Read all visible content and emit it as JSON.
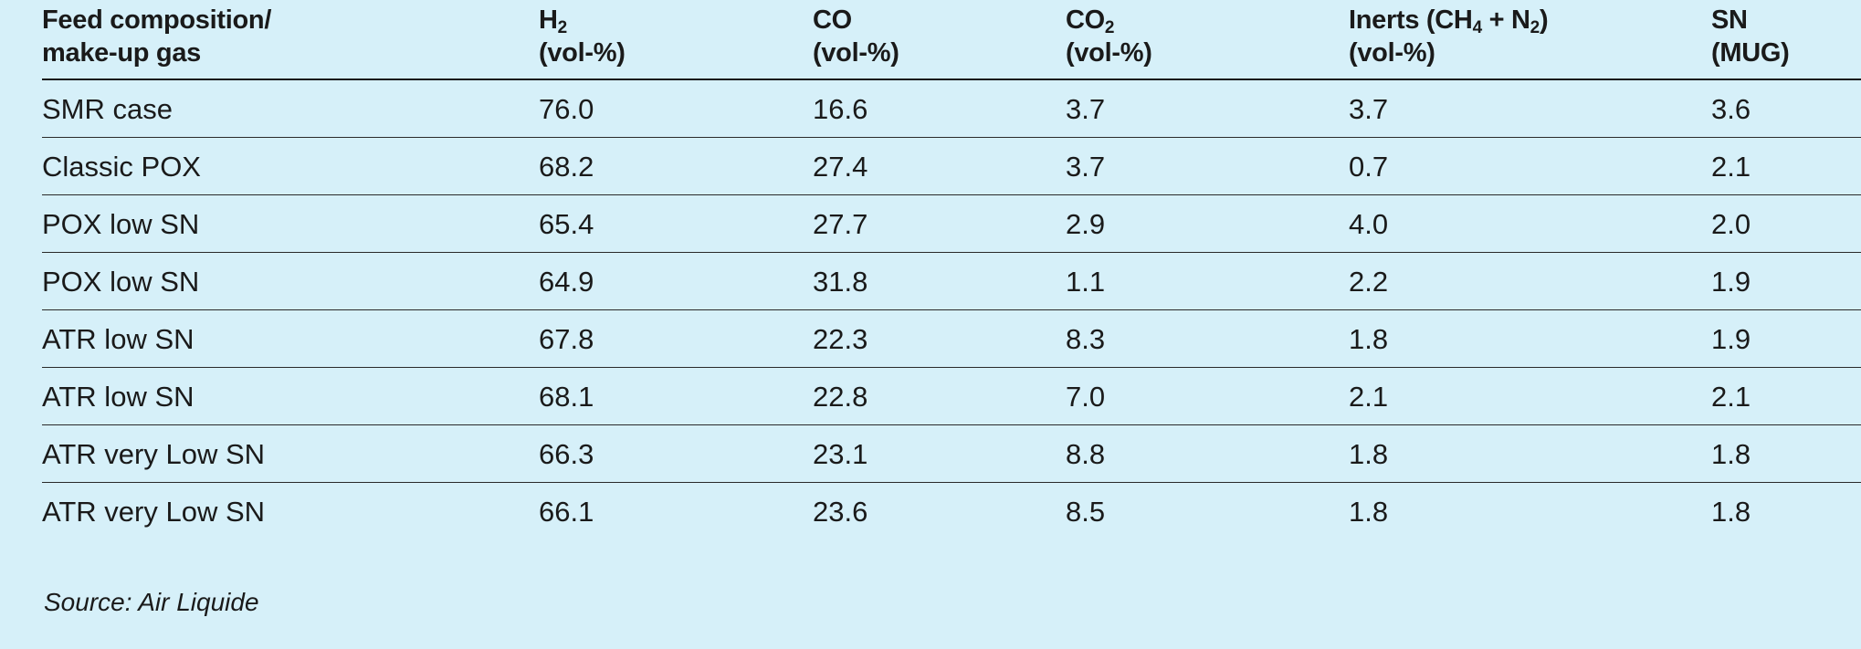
{
  "table": {
    "headers": [
      {
        "line1": "Feed composition/",
        "sub": "",
        "line1_tail": "",
        "line2": "make-up gas"
      },
      {
        "line1": "H",
        "sub": "2",
        "line1_tail": "",
        "line2": "(vol-%)"
      },
      {
        "line1": "CO",
        "sub": "",
        "line1_tail": "",
        "line2": "(vol-%)"
      },
      {
        "line1": "CO",
        "sub": "2",
        "line1_tail": "",
        "line2": "(vol-%)"
      },
      {
        "line1": "Inerts (CH",
        "sub": "4",
        "mid": " + N",
        "sub2": "2",
        "line1_tail": ")",
        "line2": "(vol-%)"
      },
      {
        "line1": "SN",
        "sub": "",
        "line1_tail": "",
        "line2": "(MUG)"
      }
    ],
    "rows": [
      [
        "SMR case",
        "76.0",
        "16.6",
        "3.7",
        "3.7",
        "3.6"
      ],
      [
        "Classic POX",
        "68.2",
        "27.4",
        "3.7",
        "0.7",
        "2.1"
      ],
      [
        "POX low SN",
        "65.4",
        "27.7",
        "2.9",
        "4.0",
        "2.0"
      ],
      [
        "POX low SN",
        "64.9",
        "31.8",
        "1.1",
        "2.2",
        "1.9"
      ],
      [
        "ATR low SN",
        "67.8",
        "22.3",
        "8.3",
        "1.8",
        "1.9"
      ],
      [
        "ATR low SN",
        "68.1",
        "22.8",
        "7.0",
        "2.1",
        "2.1"
      ],
      [
        "ATR very Low SN",
        "66.3",
        "23.1",
        "8.8",
        "1.8",
        "1.8"
      ],
      [
        "ATR very Low SN",
        "66.1",
        "23.6",
        "8.5",
        "1.8",
        "1.8"
      ]
    ]
  },
  "source": "Source: Air Liquide",
  "colors": {
    "background": "#d6f0f9",
    "text": "#1a1a1a"
  }
}
